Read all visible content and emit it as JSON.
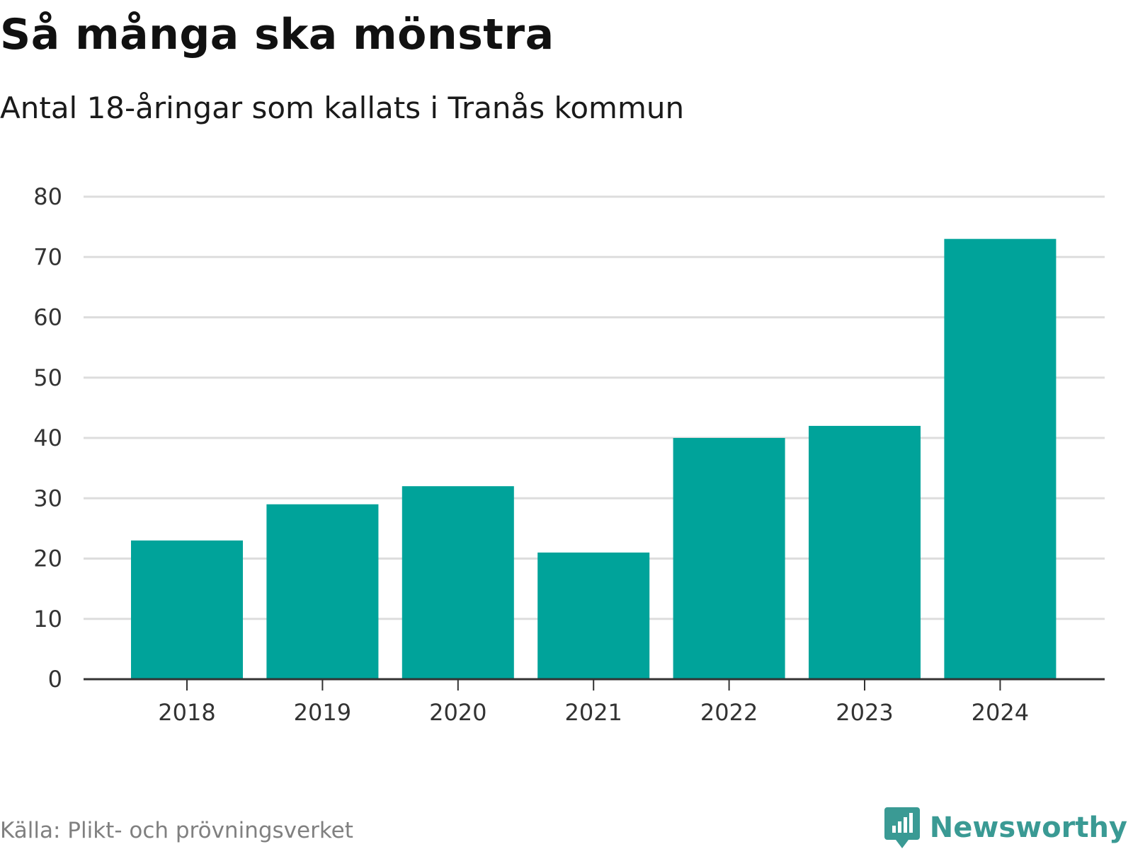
{
  "header": {
    "title": "Så många ska mönstra",
    "subtitle": "Antal 18-åringar som kallats i Tranås kommun"
  },
  "footer": {
    "source": "Källa: Plikt- och prövningsverket",
    "brand": "Newsworthy",
    "brand_icon": "newsworthy-logo-icon"
  },
  "colors": {
    "bar": "#00a39a",
    "brand": "#3a9a94",
    "grid": "#dddddd",
    "axis": "#333333"
  },
  "chart_data": {
    "type": "bar",
    "title": "Så många ska mönstra",
    "subtitle": "Antal 18-åringar som kallats i Tranås kommun",
    "categories": [
      "2018",
      "2019",
      "2020",
      "2021",
      "2022",
      "2023",
      "2024"
    ],
    "values": [
      23,
      29,
      32,
      21,
      40,
      42,
      73
    ],
    "xlabel": "",
    "ylabel": "",
    "ylim": [
      0,
      80
    ],
    "yticks": [
      0,
      10,
      20,
      30,
      40,
      50,
      60,
      70,
      80
    ],
    "grid": true,
    "legend": "none"
  }
}
